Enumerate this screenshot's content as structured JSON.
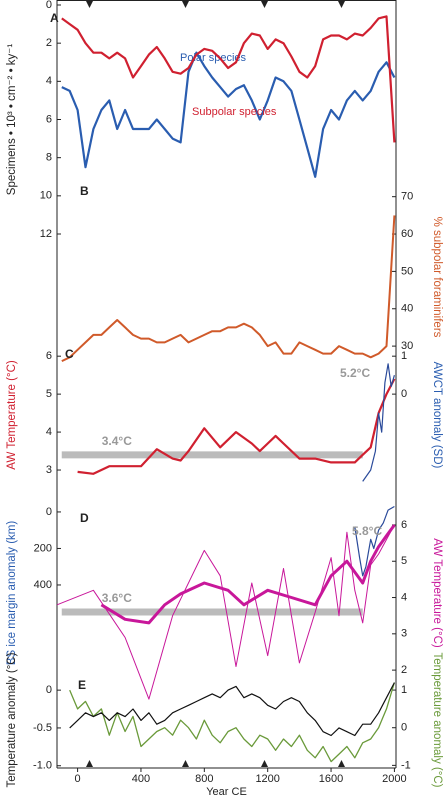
{
  "chart_data": [
    {
      "type": "line",
      "label": "A",
      "ylabel": "Specimens • 10³ • cm⁻² • ky⁻¹",
      "ylabel_color": "#222",
      "ylim": [
        0,
        12
      ],
      "yticks": [
        0,
        2,
        4,
        6,
        8,
        10,
        12
      ],
      "series": [
        {
          "name": "Polar species",
          "color": "#2a5db0",
          "linewidth": 2.2,
          "x": [
            -100,
            -50,
            0,
            50,
            100,
            150,
            200,
            250,
            300,
            350,
            400,
            450,
            500,
            550,
            600,
            650,
            700,
            750,
            800,
            850,
            900,
            950,
            1000,
            1050,
            1100,
            1150,
            1200,
            1250,
            1300,
            1350,
            1400,
            1450,
            1500,
            1550,
            1600,
            1650,
            1700,
            1750,
            1800,
            1850,
            1900,
            1950,
            2000
          ],
          "values": [
            4.3,
            4.5,
            5.5,
            8.5,
            6.5,
            5.5,
            5,
            6.5,
            5.5,
            6.5,
            6.5,
            6.5,
            6,
            6.5,
            7,
            7.2,
            3.5,
            2.5,
            3.2,
            3.8,
            4.3,
            4.8,
            4.4,
            4.2,
            5,
            6,
            5,
            3.8,
            4,
            4.5,
            6,
            7.5,
            9,
            6.5,
            5.5,
            6,
            5,
            4.5,
            5,
            4.5,
            3.5,
            3,
            3.8
          ]
        },
        {
          "name": "Subpolar species",
          "color": "#d02030",
          "linewidth": 2.2,
          "x": [
            -100,
            -50,
            0,
            50,
            100,
            150,
            200,
            250,
            300,
            350,
            400,
            450,
            500,
            550,
            600,
            650,
            700,
            750,
            800,
            850,
            900,
            950,
            1000,
            1050,
            1100,
            1150,
            1200,
            1250,
            1300,
            1350,
            1400,
            1450,
            1500,
            1550,
            1600,
            1650,
            1700,
            1750,
            1800,
            1850,
            1900,
            1950,
            2000
          ],
          "values": [
            0.7,
            1,
            1.3,
            2,
            2.5,
            2.5,
            2.8,
            2.5,
            2.8,
            3.8,
            3.2,
            2.6,
            2.2,
            2.8,
            3.5,
            3.6,
            3.3,
            2.6,
            2.3,
            2.4,
            2.8,
            3.3,
            3,
            2,
            1.5,
            1.6,
            2.3,
            1.8,
            2,
            2.7,
            3.5,
            3.8,
            3.2,
            1.8,
            1.6,
            1.6,
            1.8,
            1.5,
            1.6,
            1.2,
            0.7,
            0.6,
            7.2
          ]
        }
      ]
    },
    {
      "type": "line",
      "label": "B",
      "y2label": "% subpolar foraminifers",
      "y2label_color": "#d05a2a",
      "y2lim": [
        22,
        75
      ],
      "y2ticks": [
        30,
        40,
        50,
        60,
        70
      ],
      "series": [
        {
          "color": "#d05a2a",
          "linewidth": 2,
          "axis": "y2",
          "x": [
            -100,
            -50,
            0,
            50,
            100,
            150,
            200,
            250,
            300,
            350,
            400,
            450,
            500,
            550,
            600,
            650,
            700,
            750,
            800,
            850,
            900,
            950,
            1000,
            1050,
            1100,
            1150,
            1200,
            1250,
            1300,
            1350,
            1400,
            1450,
            1500,
            1550,
            1600,
            1650,
            1700,
            1750,
            1800,
            1850,
            1900,
            1950,
            2000
          ],
          "values": [
            26,
            27,
            29,
            31,
            33,
            33,
            35,
            37,
            35,
            33,
            32,
            32,
            31,
            31,
            32,
            33,
            31,
            32,
            33,
            34,
            34,
            35,
            35,
            36,
            35,
            33,
            30,
            31,
            28,
            28,
            31,
            30,
            29,
            28,
            28,
            30,
            29,
            28,
            28,
            27,
            28,
            30,
            65
          ]
        }
      ]
    },
    {
      "type": "line",
      "label": "C",
      "ylabel": "AW Temperature (°C)",
      "ylabel_color": "#d02030",
      "ylim": [
        2.5,
        6.4
      ],
      "yticks": [
        3,
        4,
        5,
        6
      ],
      "y2label": "AWCT anomaly (SD)",
      "y2label_color": "#2a5db0",
      "y2lim": [
        -2.5,
        1.4
      ],
      "y2ticks": [
        0,
        1
      ],
      "mean": {
        "value": 3.4,
        "label": "3.4°C",
        "x": [
          -100,
          1800
        ]
      },
      "annotations": [
        "5.2°C"
      ],
      "series": [
        {
          "color": "#d02030",
          "linewidth": 2.2,
          "x": [
            0,
            100,
            200,
            300,
            400,
            500,
            600,
            650,
            700,
            800,
            900,
            1000,
            1100,
            1150,
            1200,
            1250,
            1300,
            1400,
            1500,
            1600,
            1700,
            1750,
            1800,
            1850,
            1900,
            1950,
            2000
          ],
          "values": [
            2.95,
            2.9,
            3.1,
            3.1,
            3.1,
            3.55,
            3.3,
            3.25,
            3.5,
            4.1,
            3.6,
            4.0,
            3.7,
            3.5,
            3.7,
            3.9,
            3.7,
            3.3,
            3.3,
            3.2,
            3.2,
            3.2,
            3.4,
            3.6,
            4.5,
            5.0,
            5.4
          ]
        },
        {
          "color": "#2a4a9a",
          "linewidth": 1.2,
          "axis": "y2",
          "x": [
            1800,
            1850,
            1880,
            1900,
            1920,
            1940,
            1960,
            1980,
            2000
          ],
          "values": [
            -2.3,
            -2,
            -1.5,
            -0.5,
            -1,
            0.3,
            0.8,
            0.2,
            0.5
          ]
        }
      ]
    },
    {
      "type": "line",
      "label": "D",
      "ylabel": "BS ice margin anomaly (km)",
      "ylabel_color": "#2a5db0",
      "ylim": [
        926,
        -38
      ],
      "yticks": [
        0,
        200,
        400
      ],
      "y2label": "AW Temperature (°C)",
      "y2label_color": "#c8179a",
      "y2lim": [
        1.7,
        6.55
      ],
      "y2ticks": [
        2,
        3,
        4,
        5,
        6
      ],
      "mean": {
        "value": 3.6,
        "label": "3.6°C",
        "x": [
          -100,
          1800
        ],
        "axis": "y2"
      },
      "annotations": [
        "5.8°C"
      ],
      "series": [
        {
          "color": "#c8179a",
          "linewidth": 1,
          "axis": "y2",
          "x": [
            -130,
            100,
            300,
            450,
            600,
            800,
            900,
            1000,
            1100,
            1200,
            1300,
            1400,
            1500,
            1600,
            1650,
            1700,
            1750,
            1800,
            1850,
            1900,
            1950,
            2000
          ],
          "values": [
            3.8,
            4.2,
            2.9,
            1.2,
            3.5,
            5.3,
            4.6,
            2.1,
            4.4,
            2.4,
            4.8,
            2.2,
            3.6,
            5.1,
            3.5,
            5.8,
            4.2,
            3.3,
            4.9,
            5.2,
            5.6,
            6.0
          ]
        },
        {
          "color": "#c8179a",
          "linewidth": 3,
          "axis": "y2",
          "x": [
            150,
            300,
            450,
            550,
            650,
            800,
            950,
            1050,
            1200,
            1350,
            1500,
            1600,
            1700,
            1800,
            1850,
            1900,
            1950,
            2000
          ],
          "values": [
            3.8,
            3.4,
            3.3,
            3.8,
            4.1,
            4.4,
            4.2,
            3.8,
            4.2,
            4.0,
            3.8,
            4.6,
            5.0,
            4.4,
            5.0,
            5.4,
            5.7,
            6.0
          ]
        },
        {
          "color": "#2a4a9a",
          "linewidth": 1.2,
          "x": [
            1750,
            1780,
            1800,
            1820,
            1850,
            1870,
            1900,
            1930,
            1960,
            2000
          ],
          "values": [
            80,
            250,
            350,
            300,
            150,
            200,
            100,
            60,
            -10,
            -30
          ]
        }
      ]
    },
    {
      "type": "line",
      "label": "E",
      "ylabel": "Temperature anomaly (°C)",
      "ylabel_color": "#222",
      "ylim": [
        -1.03,
        0.24
      ],
      "yticks": [
        {
          "value": -1,
          "label": "-1.0"
        },
        -0.5,
        0
      ],
      "y2label": "Temperature anomaly (°C)",
      "y2label_color": "#6a9a3a",
      "y2lim": [
        -1.07,
        1.48
      ],
      "y2ticks": [
        -1,
        0,
        1
      ],
      "xlabel": "Year CE",
      "xlim": [
        -130,
        2010
      ],
      "xticks": [
        0,
        400,
        800,
        1200,
        1600,
        2000
      ],
      "series": [
        {
          "color": "#6a9a3a",
          "linewidth": 1.3,
          "axis": "y2",
          "x": [
            -50,
            0,
            50,
            100,
            150,
            200,
            250,
            300,
            350,
            400,
            450,
            500,
            550,
            600,
            650,
            700,
            750,
            800,
            850,
            900,
            950,
            1000,
            1050,
            1100,
            1150,
            1200,
            1250,
            1300,
            1350,
            1400,
            1450,
            1500,
            1550,
            1600,
            1650,
            1700,
            1750,
            1800,
            1850,
            1900,
            1950,
            2000
          ],
          "values": [
            1,
            0.5,
            0.7,
            0.3,
            0.5,
            -0.2,
            0.4,
            -0.1,
            0.3,
            -0.5,
            -0.3,
            -0.1,
            0,
            -0.2,
            0.2,
            0,
            -0.3,
            0.2,
            -0.2,
            -0.4,
            -0.1,
            0,
            -0.3,
            -0.5,
            -0.2,
            -0.3,
            -0.6,
            -0.3,
            -0.5,
            -0.2,
            -0.6,
            -0.8,
            -0.5,
            -0.9,
            -0.7,
            -0.5,
            -0.8,
            -0.4,
            -0.3,
            0,
            0.5,
            1.2
          ]
        },
        {
          "color": "#111111",
          "linewidth": 1.2,
          "x": [
            -50,
            0,
            50,
            100,
            150,
            200,
            250,
            300,
            350,
            400,
            450,
            500,
            550,
            600,
            650,
            700,
            750,
            800,
            850,
            900,
            950,
            1000,
            1050,
            1100,
            1150,
            1200,
            1250,
            1300,
            1350,
            1400,
            1450,
            1500,
            1550,
            1600,
            1650,
            1700,
            1750,
            1800,
            1850,
            1900,
            1950,
            2000
          ],
          "values": [
            -0.5,
            -0.4,
            -0.3,
            -0.35,
            -0.3,
            -0.4,
            -0.3,
            -0.35,
            -0.25,
            -0.4,
            -0.3,
            -0.45,
            -0.4,
            -0.3,
            -0.25,
            -0.2,
            -0.15,
            -0.1,
            -0.05,
            -0.1,
            0,
            0.05,
            -0.1,
            -0.05,
            -0.1,
            -0.2,
            -0.25,
            -0.15,
            -0.1,
            -0.15,
            -0.3,
            -0.4,
            -0.55,
            -0.6,
            -0.5,
            -0.55,
            -0.6,
            -0.45,
            -0.45,
            -0.3,
            -0.1,
            0.1
          ]
        }
      ]
    }
  ]
}
